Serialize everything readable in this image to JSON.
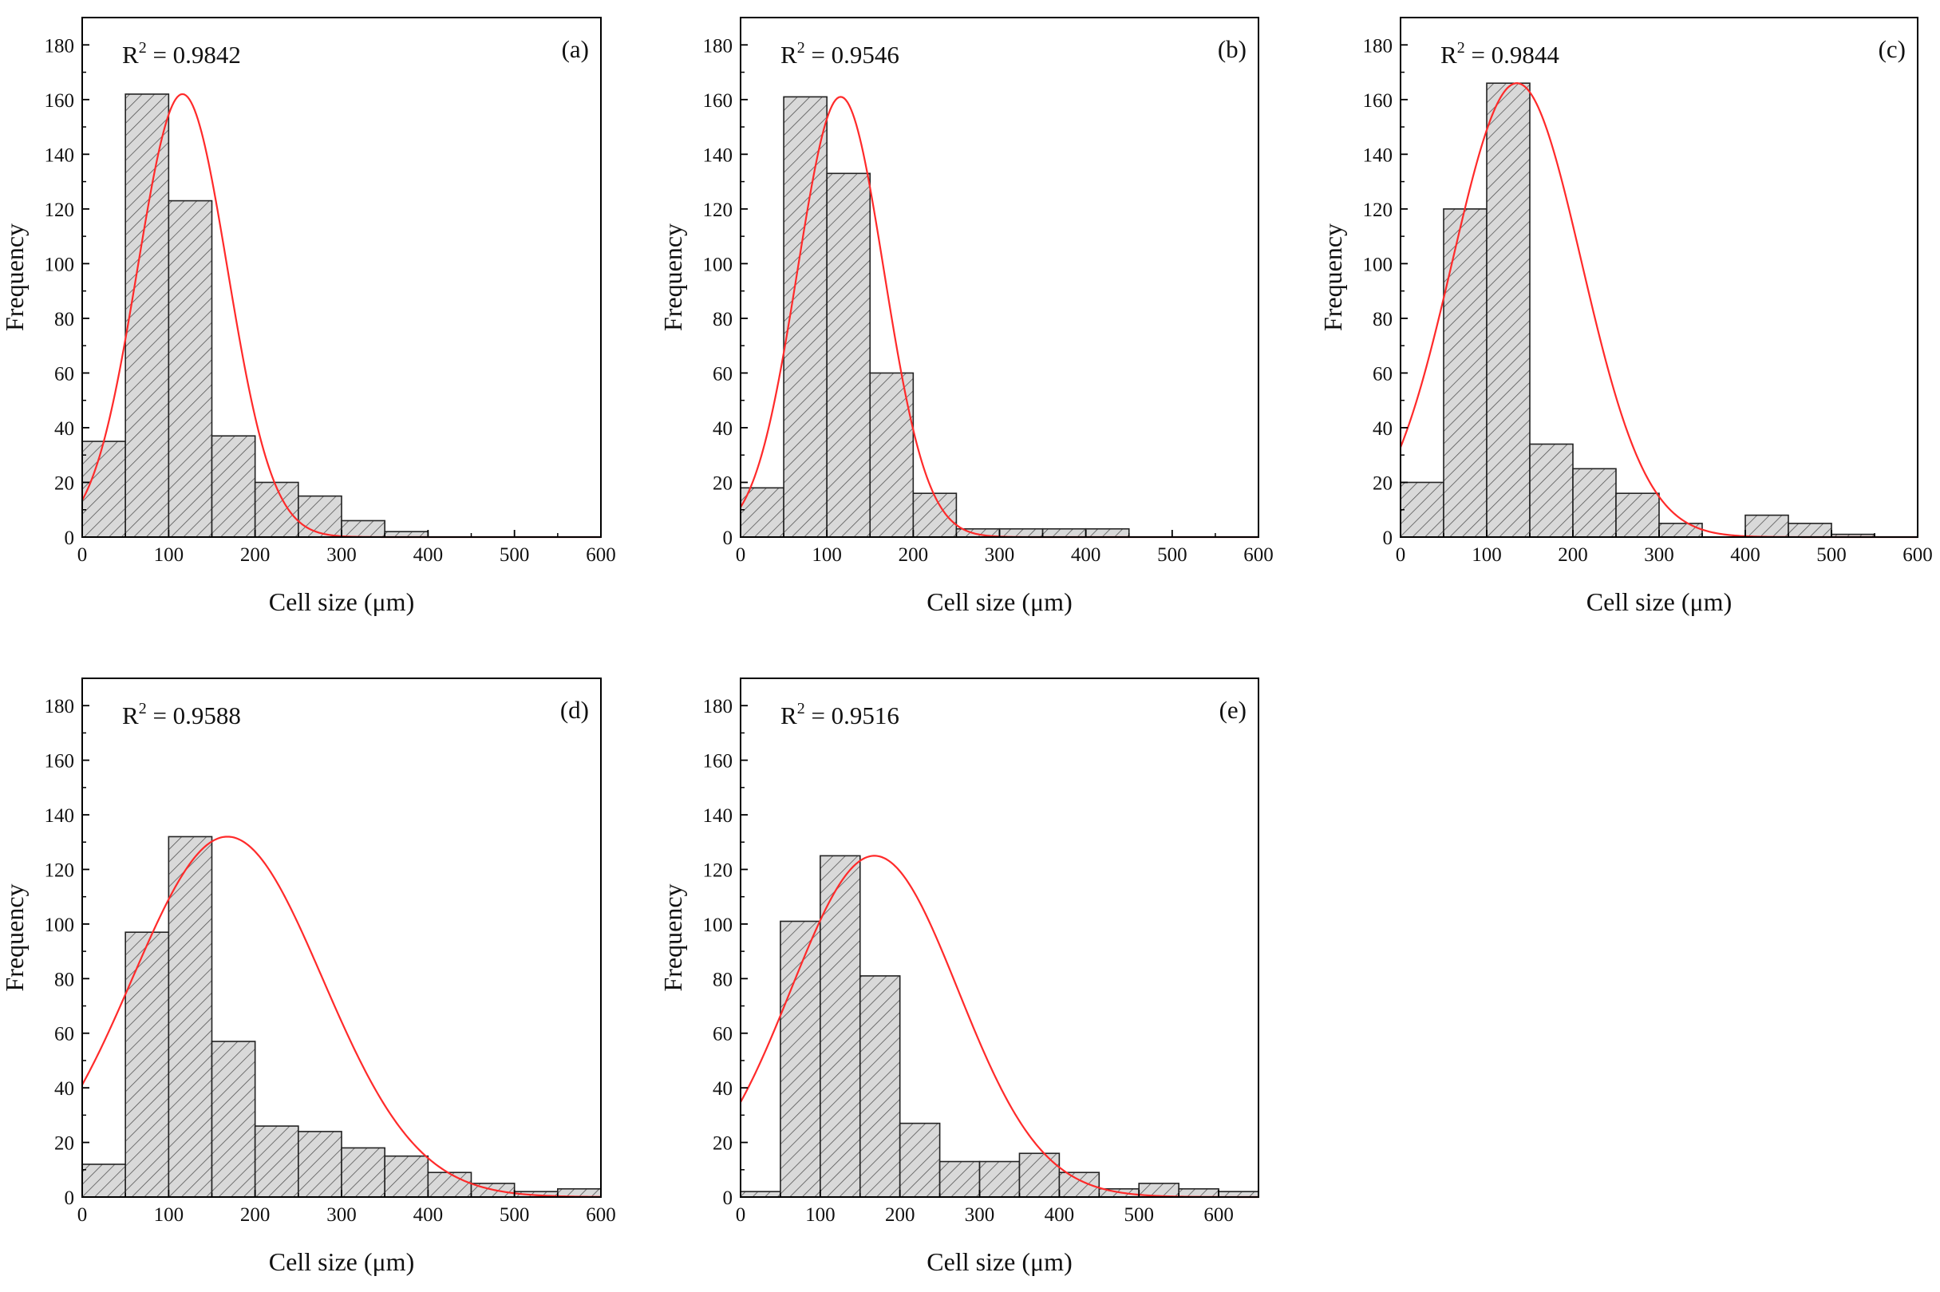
{
  "figure": {
    "colors": {
      "bar_fill": "#d9d9d9",
      "bar_hatch": "#555555",
      "fit_curve": "#ff2a2a",
      "axis": "#000000"
    }
  },
  "chart_data": [
    {
      "type": "bar",
      "panel": "(a)",
      "annotation": "R² = 0.9842",
      "r2_value": "0.9842",
      "xlabel": "Cell size (μm)",
      "ylabel": "Frequency",
      "xlim": [
        0,
        600
      ],
      "ylim": [
        0,
        190
      ],
      "xticks": [
        0,
        100,
        200,
        300,
        400,
        500,
        600
      ],
      "yticks": [
        0,
        20,
        40,
        60,
        80,
        100,
        120,
        140,
        160,
        180
      ],
      "bin_width": 50,
      "bin_starts": [
        0,
        50,
        100,
        150,
        200,
        250,
        300,
        350
      ],
      "values": [
        35,
        162,
        123,
        37,
        20,
        15,
        6,
        2
      ],
      "fit": {
        "type": "gaussian",
        "mean": 116,
        "sigma": 52,
        "peak": 162
      }
    },
    {
      "type": "bar",
      "panel": "(b)",
      "annotation": "R² = 0.9546",
      "r2_value": "0.9546",
      "xlabel": "Cell size (μm)",
      "ylabel": "Frequency",
      "xlim": [
        0,
        600
      ],
      "ylim": [
        0,
        190
      ],
      "xticks": [
        0,
        100,
        200,
        300,
        400,
        500,
        600
      ],
      "yticks": [
        0,
        20,
        40,
        60,
        80,
        100,
        120,
        140,
        160,
        180
      ],
      "bin_width": 50,
      "bin_starts": [
        0,
        50,
        100,
        150,
        200,
        250,
        300,
        350,
        400
      ],
      "values": [
        18,
        161,
        133,
        60,
        16,
        3,
        3,
        3,
        3
      ],
      "fit": {
        "type": "gaussian",
        "mean": 116,
        "sigma": 50,
        "peak": 161
      }
    },
    {
      "type": "bar",
      "panel": "(c)",
      "annotation": "R² = 0.9844",
      "r2_value": "0.9844",
      "xlabel": "Cell size (μm)",
      "ylabel": "Frequency",
      "xlim": [
        0,
        600
      ],
      "ylim": [
        0,
        190
      ],
      "xticks": [
        0,
        100,
        200,
        300,
        400,
        500,
        600
      ],
      "yticks": [
        0,
        20,
        40,
        60,
        80,
        100,
        120,
        140,
        160,
        180
      ],
      "bin_width": 50,
      "bin_starts": [
        0,
        50,
        100,
        150,
        200,
        250,
        300,
        350,
        400,
        450,
        500
      ],
      "values": [
        20,
        120,
        166,
        34,
        25,
        16,
        5,
        0,
        8,
        5,
        1
      ],
      "fit": {
        "type": "gaussian",
        "mean": 135,
        "sigma": 75,
        "peak": 166
      }
    },
    {
      "type": "bar",
      "panel": "(d)",
      "annotation": "R² = 0.9588",
      "r2_value": "0.9588",
      "xlabel": "Cell size (μm)",
      "ylabel": "Frequency",
      "xlim": [
        0,
        600
      ],
      "ylim": [
        0,
        190
      ],
      "xticks": [
        0,
        100,
        200,
        300,
        400,
        500,
        600
      ],
      "yticks": [
        0,
        20,
        40,
        60,
        80,
        100,
        120,
        140,
        160,
        180
      ],
      "bin_width": 50,
      "bin_starts": [
        0,
        50,
        100,
        150,
        200,
        250,
        300,
        350,
        400,
        450,
        500,
        550
      ],
      "values": [
        12,
        97,
        132,
        57,
        26,
        24,
        18,
        15,
        9,
        5,
        2,
        3
      ],
      "fit": {
        "type": "gaussian",
        "mean": 168,
        "sigma": 110,
        "peak": 132
      }
    },
    {
      "type": "bar",
      "panel": "(e)",
      "annotation": "R² = 0.9516",
      "r2_value": "0.9516",
      "xlabel": "Cell size (μm)",
      "ylabel": "Frequency",
      "xlim": [
        0,
        650
      ],
      "ylim": [
        0,
        190
      ],
      "xticks": [
        0,
        100,
        200,
        300,
        400,
        500,
        600
      ],
      "yticks": [
        0,
        20,
        40,
        60,
        80,
        100,
        120,
        140,
        160,
        180
      ],
      "bin_width": 50,
      "bin_starts": [
        0,
        50,
        100,
        150,
        200,
        250,
        300,
        350,
        400,
        450,
        500,
        550,
        600
      ],
      "values": [
        2,
        101,
        125,
        81,
        27,
        13,
        13,
        16,
        9,
        3,
        5,
        3,
        2
      ],
      "fit": {
        "type": "gaussian",
        "mean": 168,
        "sigma": 105,
        "peak": 125
      }
    }
  ]
}
